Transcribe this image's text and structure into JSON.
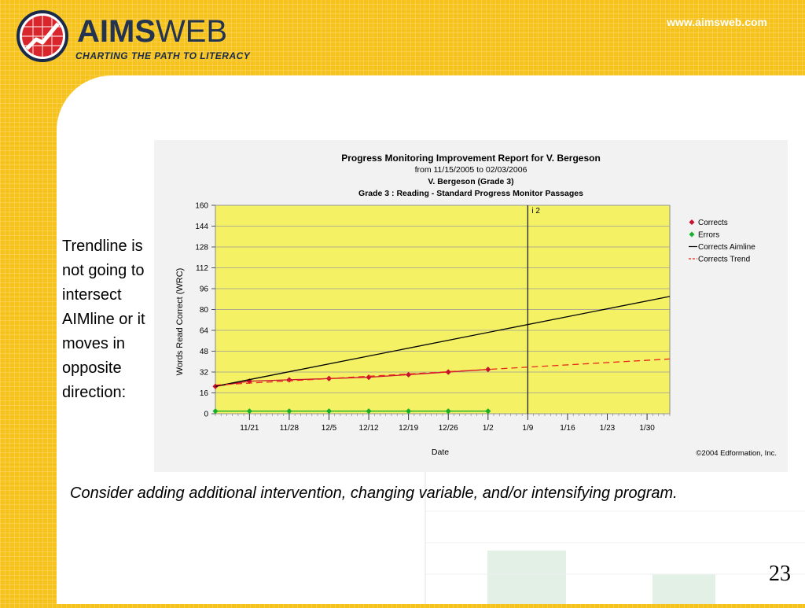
{
  "header": {
    "logo_bold": "AIMS",
    "logo_light": "WEB",
    "tagline": "CHARTING THE PATH TO LITERACY",
    "site_url": "www.aimsweb.com"
  },
  "notes": {
    "side": "Trendline is not going to intersect AIMline or it moves in opposite direction:",
    "bottom": "Consider adding additional intervention, changing variable, and/or intensifying program."
  },
  "slide_number": "23",
  "colors": {
    "background": "#f6c21c",
    "plot_fill": "#f4f165",
    "corrects": "#c8102e",
    "errors": "#18b02a",
    "aimline": "#000000",
    "trend": "#e8281e"
  },
  "chart_data": {
    "type": "line",
    "title": "Progress Monitoring Improvement Report for V. Bergeson",
    "subtitle": "from 11/15/2005 to 02/03/2006",
    "student": "V. Bergeson (Grade 3)",
    "subtitle2": "Grade 3 : Reading - Standard Progress Monitor Passages",
    "xlabel": "Date",
    "ylabel": "Words Read Correct (WRC)",
    "copyright": "©2004 Edformation, Inc.",
    "xlim": [
      "2005-11-15",
      "2006-02-03"
    ],
    "ylim": [
      0,
      160
    ],
    "yticks": [
      0,
      16,
      32,
      48,
      64,
      80,
      96,
      112,
      128,
      144,
      160
    ],
    "xticks": [
      {
        "date": "2005-11-21",
        "label": "11/21"
      },
      {
        "date": "2005-11-28",
        "label": "11/28"
      },
      {
        "date": "2005-12-05",
        "label": "12/5"
      },
      {
        "date": "2005-12-12",
        "label": "12/12"
      },
      {
        "date": "2005-12-19",
        "label": "12/19"
      },
      {
        "date": "2005-12-26",
        "label": "12/26"
      },
      {
        "date": "2006-01-02",
        "label": "1/2"
      },
      {
        "date": "2006-01-09",
        "label": "1/9"
      },
      {
        "date": "2006-01-16",
        "label": "1/16"
      },
      {
        "date": "2006-01-23",
        "label": "1/23"
      },
      {
        "date": "2006-01-30",
        "label": "1/30"
      }
    ],
    "grid": true,
    "legend_position": "right",
    "intervention_line": {
      "date": "2006-01-09",
      "label": "i 2"
    },
    "series": [
      {
        "name": "Corrects",
        "style": "markers-line",
        "points": [
          {
            "x": "2005-11-15",
            "y": 21
          },
          {
            "x": "2005-11-21",
            "y": 25
          },
          {
            "x": "2005-11-28",
            "y": 26
          },
          {
            "x": "2005-12-05",
            "y": 27
          },
          {
            "x": "2005-12-12",
            "y": 28
          },
          {
            "x": "2005-12-19",
            "y": 30
          },
          {
            "x": "2005-12-26",
            "y": 32
          },
          {
            "x": "2006-01-02",
            "y": 34
          }
        ]
      },
      {
        "name": "Errors",
        "style": "markers-line",
        "points": [
          {
            "x": "2005-11-15",
            "y": 2
          },
          {
            "x": "2005-11-21",
            "y": 2
          },
          {
            "x": "2005-11-28",
            "y": 2
          },
          {
            "x": "2005-12-05",
            "y": 2
          },
          {
            "x": "2005-12-12",
            "y": 2
          },
          {
            "x": "2005-12-19",
            "y": 2
          },
          {
            "x": "2005-12-26",
            "y": 2
          },
          {
            "x": "2006-01-02",
            "y": 2
          }
        ]
      },
      {
        "name": "Corrects Aimline",
        "style": "line",
        "points": [
          {
            "x": "2005-11-15",
            "y": 21
          },
          {
            "x": "2006-02-03",
            "y": 90
          }
        ]
      },
      {
        "name": "Corrects Trend",
        "style": "dashed",
        "points": [
          {
            "x": "2005-11-15",
            "y": 22
          },
          {
            "x": "2006-02-03",
            "y": 42
          }
        ]
      }
    ]
  }
}
